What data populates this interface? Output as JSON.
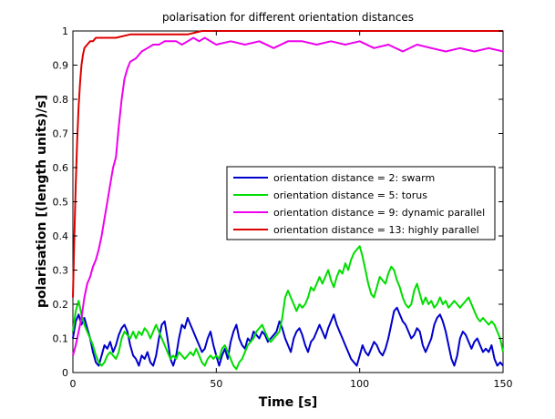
{
  "chart_data": {
    "type": "line",
    "title": "polarisation for different orientation distances",
    "xlabel": "Time [s]",
    "ylabel": "polarisation [(length units)/s]",
    "xlim": [
      0,
      150
    ],
    "ylim": [
      0,
      1
    ],
    "xticks": [
      0,
      50,
      100,
      150
    ],
    "yticks": [
      0,
      0.1,
      0.2,
      0.3,
      0.4,
      0.5,
      0.6,
      0.7,
      0.8,
      0.9,
      1
    ],
    "grid": false,
    "legend_position": "right",
    "series": [
      {
        "name": "orientation distance = 2: swarm",
        "color": "#0000cc",
        "x": [
          0,
          1,
          2,
          3,
          4,
          5,
          6,
          7,
          8,
          9,
          10,
          11,
          12,
          13,
          14,
          15,
          16,
          17,
          18,
          19,
          20,
          21,
          22,
          23,
          24,
          25,
          26,
          27,
          28,
          29,
          30,
          31,
          32,
          33,
          34,
          35,
          36,
          37,
          38,
          39,
          40,
          41,
          42,
          43,
          44,
          45,
          46,
          47,
          48,
          49,
          50,
          51,
          52,
          53,
          54,
          55,
          56,
          57,
          58,
          59,
          60,
          61,
          62,
          63,
          64,
          65,
          66,
          67,
          68,
          69,
          70,
          71,
          72,
          73,
          74,
          75,
          76,
          77,
          78,
          79,
          80,
          81,
          82,
          83,
          84,
          85,
          86,
          87,
          88,
          89,
          90,
          91,
          92,
          93,
          94,
          95,
          96,
          97,
          98,
          99,
          100,
          101,
          102,
          103,
          104,
          105,
          106,
          107,
          108,
          109,
          110,
          111,
          112,
          113,
          114,
          115,
          116,
          117,
          118,
          119,
          120,
          121,
          122,
          123,
          124,
          125,
          126,
          127,
          128,
          129,
          130,
          131,
          132,
          133,
          134,
          135,
          136,
          137,
          138,
          139,
          140,
          141,
          142,
          143,
          144,
          145,
          146,
          147,
          148,
          149,
          150
        ],
        "y": [
          0.1,
          0.15,
          0.17,
          0.14,
          0.16,
          0.13,
          0.1,
          0.06,
          0.03,
          0.02,
          0.05,
          0.08,
          0.07,
          0.09,
          0.06,
          0.08,
          0.11,
          0.13,
          0.14,
          0.12,
          0.08,
          0.05,
          0.04,
          0.02,
          0.05,
          0.04,
          0.06,
          0.03,
          0.02,
          0.05,
          0.1,
          0.14,
          0.15,
          0.1,
          0.04,
          0.02,
          0.05,
          0.1,
          0.14,
          0.13,
          0.16,
          0.14,
          0.12,
          0.1,
          0.08,
          0.06,
          0.07,
          0.1,
          0.12,
          0.08,
          0.05,
          0.02,
          0.05,
          0.07,
          0.04,
          0.09,
          0.12,
          0.14,
          0.1,
          0.08,
          0.07,
          0.1,
          0.09,
          0.12,
          0.11,
          0.1,
          0.12,
          0.11,
          0.09,
          0.1,
          0.11,
          0.12,
          0.15,
          0.13,
          0.1,
          0.08,
          0.06,
          0.1,
          0.12,
          0.13,
          0.11,
          0.08,
          0.06,
          0.09,
          0.1,
          0.12,
          0.14,
          0.12,
          0.1,
          0.13,
          0.15,
          0.17,
          0.14,
          0.12,
          0.1,
          0.08,
          0.06,
          0.04,
          0.03,
          0.02,
          0.05,
          0.08,
          0.06,
          0.05,
          0.07,
          0.09,
          0.08,
          0.06,
          0.05,
          0.07,
          0.1,
          0.14,
          0.18,
          0.19,
          0.17,
          0.15,
          0.14,
          0.12,
          0.1,
          0.11,
          0.13,
          0.12,
          0.08,
          0.06,
          0.08,
          0.1,
          0.14,
          0.16,
          0.17,
          0.15,
          0.12,
          0.08,
          0.04,
          0.02,
          0.05,
          0.1,
          0.12,
          0.11,
          0.09,
          0.07,
          0.09,
          0.1,
          0.08,
          0.06,
          0.07,
          0.06,
          0.08,
          0.04,
          0.02,
          0.03,
          0.02
        ]
      },
      {
        "name": "orientation distance = 5: torus",
        "color": "#00dd00",
        "x": [
          0,
          1,
          2,
          3,
          4,
          5,
          6,
          7,
          8,
          9,
          10,
          11,
          12,
          13,
          14,
          15,
          16,
          17,
          18,
          19,
          20,
          21,
          22,
          23,
          24,
          25,
          26,
          27,
          28,
          29,
          30,
          31,
          32,
          33,
          34,
          35,
          36,
          37,
          38,
          39,
          40,
          41,
          42,
          43,
          44,
          45,
          46,
          47,
          48,
          49,
          50,
          51,
          52,
          53,
          54,
          55,
          56,
          57,
          58,
          59,
          60,
          61,
          62,
          63,
          64,
          65,
          66,
          67,
          68,
          69,
          70,
          71,
          72,
          73,
          74,
          75,
          76,
          77,
          78,
          79,
          80,
          81,
          82,
          83,
          84,
          85,
          86,
          87,
          88,
          89,
          90,
          91,
          92,
          93,
          94,
          95,
          96,
          97,
          98,
          99,
          100,
          101,
          102,
          103,
          104,
          105,
          106,
          107,
          108,
          109,
          110,
          111,
          112,
          113,
          114,
          115,
          116,
          117,
          118,
          119,
          120,
          121,
          122,
          123,
          124,
          125,
          126,
          127,
          128,
          129,
          130,
          131,
          132,
          133,
          134,
          135,
          136,
          137,
          138,
          139,
          140,
          141,
          142,
          143,
          144,
          145,
          146,
          147,
          148,
          149,
          150
        ],
        "y": [
          0.12,
          0.18,
          0.21,
          0.17,
          0.14,
          0.12,
          0.1,
          0.08,
          0.05,
          0.03,
          0.02,
          0.03,
          0.05,
          0.06,
          0.05,
          0.04,
          0.06,
          0.1,
          0.12,
          0.11,
          0.1,
          0.12,
          0.1,
          0.12,
          0.11,
          0.13,
          0.12,
          0.1,
          0.12,
          0.14,
          0.12,
          0.1,
          0.08,
          0.06,
          0.04,
          0.05,
          0.04,
          0.06,
          0.05,
          0.04,
          0.05,
          0.06,
          0.05,
          0.07,
          0.05,
          0.03,
          0.02,
          0.04,
          0.05,
          0.04,
          0.05,
          0.04,
          0.07,
          0.08,
          0.06,
          0.04,
          0.02,
          0.01,
          0.03,
          0.04,
          0.06,
          0.08,
          0.09,
          0.1,
          0.12,
          0.13,
          0.14,
          0.12,
          0.1,
          0.09,
          0.1,
          0.11,
          0.12,
          0.16,
          0.22,
          0.24,
          0.22,
          0.2,
          0.18,
          0.2,
          0.19,
          0.2,
          0.22,
          0.25,
          0.24,
          0.26,
          0.28,
          0.26,
          0.28,
          0.3,
          0.27,
          0.25,
          0.28,
          0.3,
          0.29,
          0.32,
          0.3,
          0.33,
          0.35,
          0.36,
          0.37,
          0.34,
          0.3,
          0.26,
          0.23,
          0.22,
          0.25,
          0.28,
          0.27,
          0.26,
          0.29,
          0.31,
          0.3,
          0.27,
          0.25,
          0.22,
          0.2,
          0.19,
          0.2,
          0.24,
          0.26,
          0.23,
          0.2,
          0.22,
          0.2,
          0.21,
          0.19,
          0.2,
          0.22,
          0.2,
          0.21,
          0.19,
          0.2,
          0.21,
          0.2,
          0.19,
          0.2,
          0.21,
          0.22,
          0.2,
          0.18,
          0.16,
          0.15,
          0.16,
          0.15,
          0.14,
          0.15,
          0.14,
          0.12,
          0.1,
          0.06
        ]
      },
      {
        "name": "orientation distance = 9: dynamic parallel",
        "color": "#ee00ee",
        "x": [
          0,
          1,
          2,
          3,
          4,
          5,
          6,
          7,
          8,
          9,
          10,
          11,
          12,
          13,
          14,
          15,
          16,
          17,
          18,
          19,
          20,
          22,
          24,
          26,
          28,
          30,
          32,
          34,
          36,
          38,
          40,
          42,
          44,
          46,
          48,
          50,
          55,
          60,
          65,
          70,
          75,
          80,
          85,
          90,
          95,
          100,
          105,
          110,
          115,
          120,
          125,
          130,
          135,
          140,
          145,
          150
        ],
        "y": [
          0.05,
          0.08,
          0.12,
          0.16,
          0.22,
          0.26,
          0.28,
          0.31,
          0.33,
          0.36,
          0.4,
          0.45,
          0.5,
          0.55,
          0.6,
          0.63,
          0.72,
          0.8,
          0.86,
          0.89,
          0.91,
          0.92,
          0.94,
          0.95,
          0.96,
          0.96,
          0.97,
          0.97,
          0.97,
          0.96,
          0.97,
          0.98,
          0.97,
          0.98,
          0.97,
          0.96,
          0.97,
          0.96,
          0.97,
          0.95,
          0.97,
          0.97,
          0.96,
          0.97,
          0.96,
          0.97,
          0.95,
          0.96,
          0.94,
          0.96,
          0.95,
          0.94,
          0.95,
          0.94,
          0.95,
          0.94
        ]
      },
      {
        "name": "orientation distance = 13: highly parallel",
        "color": "#dd0000",
        "x": [
          0,
          0.5,
          1,
          1.5,
          2,
          2.5,
          3,
          3.5,
          4,
          5,
          6,
          7,
          8,
          10,
          12,
          15,
          20,
          25,
          30,
          35,
          40,
          45,
          50,
          60,
          70,
          80,
          90,
          100,
          110,
          120,
          130,
          140,
          150
        ],
        "y": [
          0.22,
          0.4,
          0.55,
          0.68,
          0.78,
          0.85,
          0.9,
          0.93,
          0.95,
          0.96,
          0.97,
          0.97,
          0.98,
          0.98,
          0.98,
          0.98,
          0.99,
          0.99,
          0.99,
          0.99,
          0.99,
          1.0,
          1.0,
          1.0,
          1.0,
          1.0,
          1.0,
          1.0,
          1.0,
          1.0,
          1.0,
          1.0,
          1.0
        ]
      }
    ]
  }
}
